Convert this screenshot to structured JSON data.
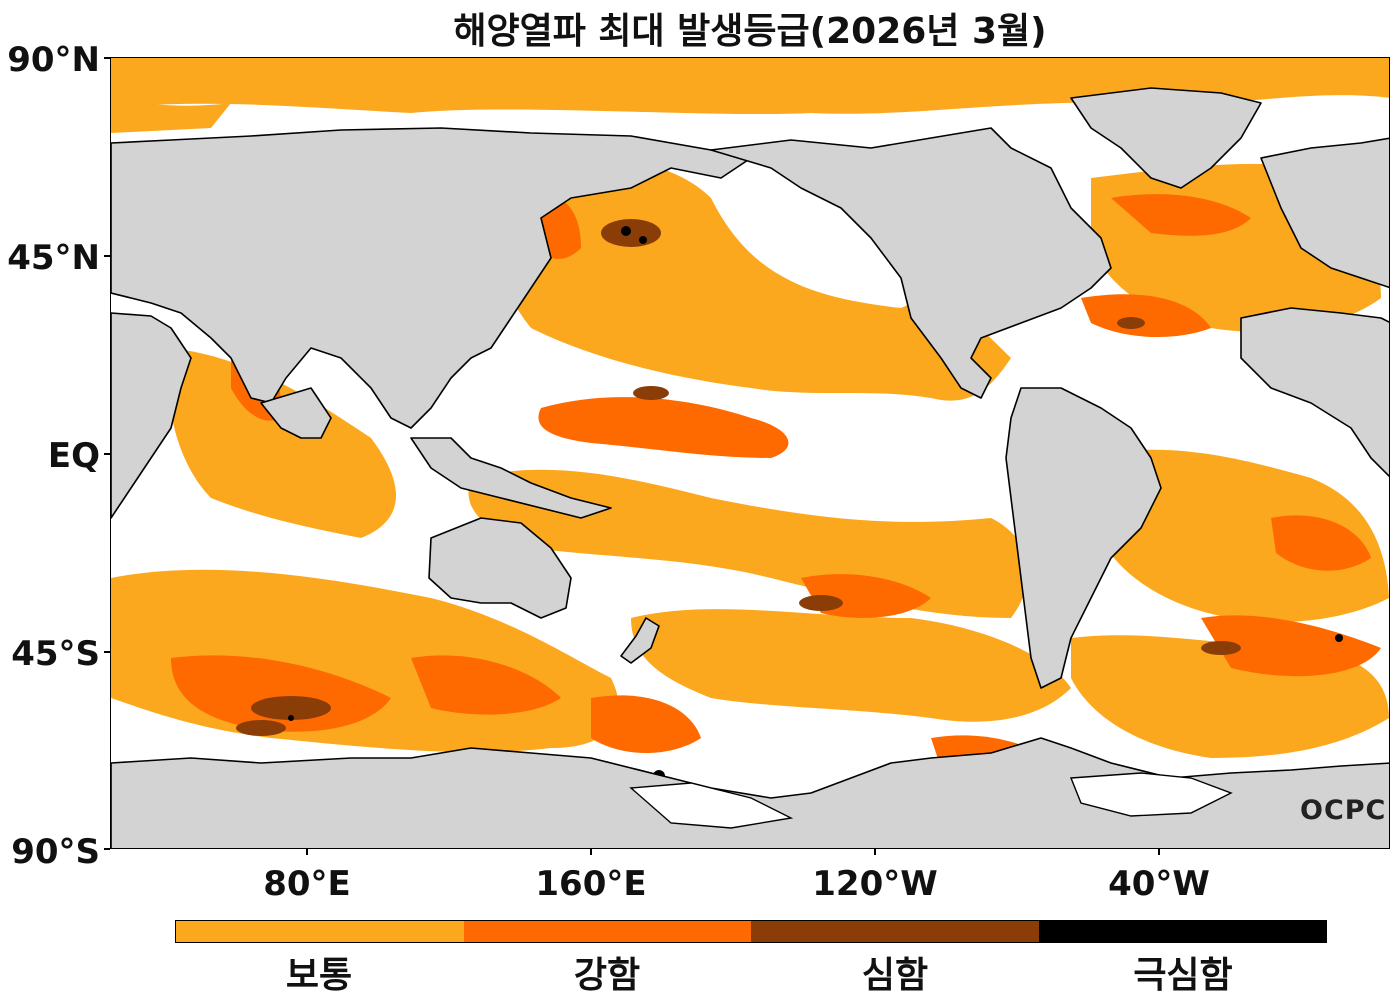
{
  "title": "해양열파 최대 발생등급(2026년 3월)",
  "axes": {
    "lat_labels": [
      "90°N",
      "45°N",
      "EQ",
      "45°S",
      "90°S"
    ],
    "lon_labels": [
      "80°E",
      "160°E",
      "120°W",
      "40°W"
    ]
  },
  "legend": {
    "categories": [
      {
        "label": "보통",
        "color": "#fba81f"
      },
      {
        "label": "강함",
        "color": "#ff6a00"
      },
      {
        "label": "심함",
        "color": "#8b3d07"
      },
      {
        "label": "극심함",
        "color": "#000000"
      }
    ]
  },
  "colors": {
    "land": "#d3d3d3",
    "ocean_no_event": "#ffffff",
    "coastline": "#000000"
  },
  "logo_text": "OCPC"
}
